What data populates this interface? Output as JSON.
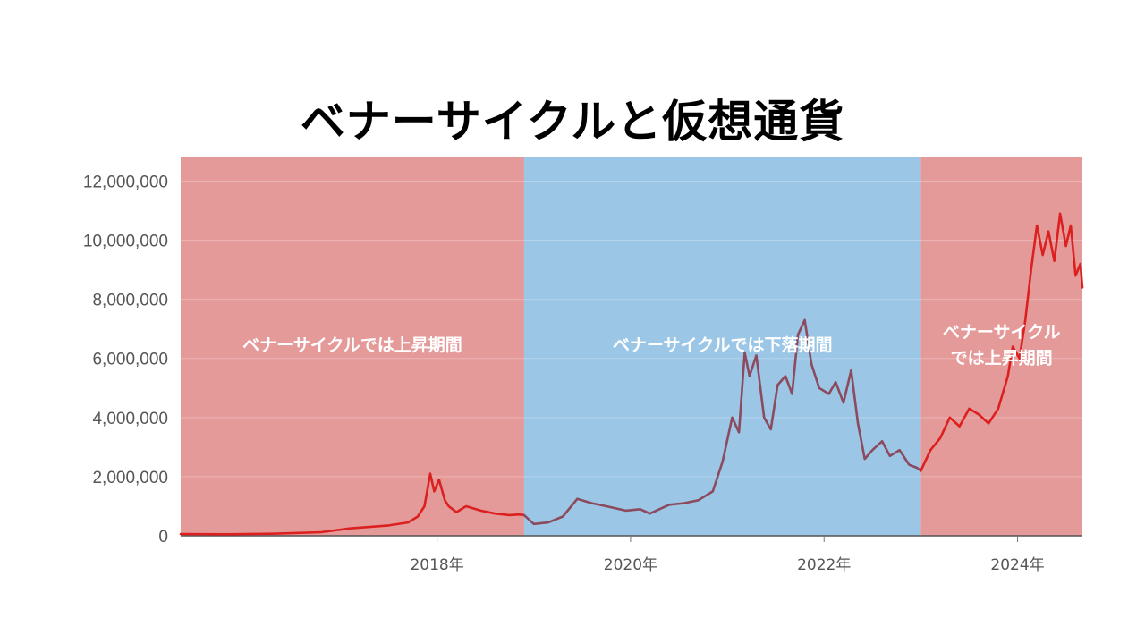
{
  "title": "ベナーサイクルと仮想通貨",
  "chart_data": {
    "type": "line",
    "title": "ベナーサイクルと仮想通貨",
    "x_unit": "year",
    "xlim": [
      2015.35,
      2024.67
    ],
    "ylim": [
      0,
      12800000
    ],
    "y_ticks": [
      0,
      2000000,
      4000000,
      6000000,
      8000000,
      10000000,
      12000000
    ],
    "y_tick_labels": [
      "0",
      "2,000,000",
      "4,000,000",
      "6,000,000",
      "8,000,000",
      "10,000,000",
      "12,000,000"
    ],
    "x_ticks": [
      2018,
      2020,
      2022,
      2024
    ],
    "x_tick_labels": [
      "2018年",
      "2020年",
      "2022年",
      "2024年"
    ],
    "grid": "horizontal",
    "colors": {
      "up_band": "#e59a9a",
      "down_band": "#9bc6e6",
      "line": "#dc2020",
      "line_in_down_band": "#8c4a5e"
    },
    "bands": [
      {
        "x_start": 2015.35,
        "x_end": 2018.9,
        "kind": "up",
        "lines": [
          "ベナーサイクルでは上昇期間"
        ]
      },
      {
        "x_start": 2018.9,
        "x_end": 2023.0,
        "kind": "down",
        "lines": [
          "ベナーサイクルでは下落期間"
        ]
      },
      {
        "x_start": 2023.0,
        "x_end": 2024.67,
        "kind": "up",
        "lines": [
          "ベナーサイクル",
          "では上昇期間"
        ]
      }
    ],
    "series": [
      {
        "x": [
          2015.35,
          2015.8,
          2016.3,
          2016.8,
          2017.1,
          2017.3,
          2017.5,
          2017.7,
          2017.8,
          2017.87,
          2017.93,
          2017.97,
          2018.02,
          2018.08,
          2018.12,
          2018.2,
          2018.3,
          2018.45,
          2018.6,
          2018.75,
          2018.85,
          2018.9,
          2019.0,
          2019.15,
          2019.3,
          2019.45,
          2019.6,
          2019.75,
          2019.95,
          2020.1,
          2020.2,
          2020.4,
          2020.55,
          2020.7,
          2020.85,
          2020.95,
          2021.05,
          2021.12,
          2021.18,
          2021.23,
          2021.3,
          2021.38,
          2021.45,
          2021.52,
          2021.6,
          2021.67,
          2021.73,
          2021.8,
          2021.87,
          2021.95,
          2022.05,
          2022.12,
          2022.2,
          2022.28,
          2022.35,
          2022.42,
          2022.5,
          2022.6,
          2022.68,
          2022.78,
          2022.88,
          2022.96,
          2023.0,
          2023.1,
          2023.2,
          2023.3,
          2023.4,
          2023.5,
          2023.6,
          2023.7,
          2023.8,
          2023.9,
          2023.95,
          2024.02,
          2024.08,
          2024.14,
          2024.2,
          2024.26,
          2024.32,
          2024.38,
          2024.44,
          2024.5,
          2024.55,
          2024.6,
          2024.65,
          2024.67
        ],
        "y": [
          60000,
          50000,
          70000,
          120000,
          250000,
          300000,
          350000,
          450000,
          650000,
          1000000,
          2100000,
          1500000,
          1900000,
          1200000,
          1000000,
          800000,
          1000000,
          850000,
          750000,
          700000,
          720000,
          700000,
          400000,
          450000,
          650000,
          1250000,
          1100000,
          1000000,
          850000,
          900000,
          750000,
          1050000,
          1100000,
          1200000,
          1500000,
          2500000,
          4000000,
          3500000,
          6200000,
          5400000,
          6100000,
          4000000,
          3600000,
          5100000,
          5400000,
          4800000,
          6800000,
          7300000,
          5800000,
          5000000,
          4800000,
          5200000,
          4500000,
          5600000,
          3800000,
          2600000,
          2900000,
          3200000,
          2700000,
          2900000,
          2400000,
          2300000,
          2200000,
          2900000,
          3300000,
          4000000,
          3700000,
          4300000,
          4100000,
          3800000,
          4300000,
          5400000,
          6400000,
          6000000,
          7300000,
          9000000,
          10500000,
          9500000,
          10300000,
          9300000,
          10900000,
          9800000,
          10500000,
          8800000,
          9200000,
          8400000
        ]
      }
    ]
  }
}
